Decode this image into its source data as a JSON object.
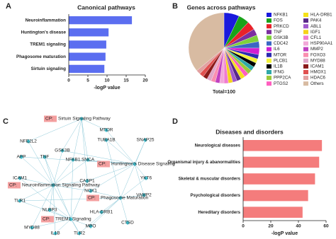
{
  "chart_data": [
    {
      "type": "hbar",
      "panel": "A",
      "title": "Canonical pathways",
      "categories": [
        "Neuroinflammation",
        "Huntington's disease",
        "TREM1 signaling",
        "Phagosome maturation",
        "Sirtuin signaling"
      ],
      "values": [
        16.5,
        10.4,
        9.8,
        9.6,
        9.3
      ],
      "color": "#5b6ef0",
      "xlabel": "-logP value",
      "xlim": [
        0,
        20
      ],
      "xticks": [
        0,
        5,
        10,
        15,
        20
      ]
    },
    {
      "type": "pie",
      "panel": "B",
      "title": "Genes across pathways",
      "total_label": "Total=100",
      "categories": [
        "NFKB1",
        "FOS",
        "PRKCD",
        "TNF",
        "GSK3B",
        "CDC42",
        "IL6",
        "MTOR",
        "PLCB1",
        "IL1B",
        "IFNG",
        "PPP2CA",
        "PTGS2",
        "HLA-DRB1",
        "PAK4",
        "ABL1",
        "IGF1",
        "CFL1",
        "HSP90AA1",
        "MMP2",
        "FOXO3",
        "MYD88",
        "ICAM1",
        "HMOX1",
        "HDAC6",
        "Others"
      ],
      "values": [
        7,
        5,
        4,
        3,
        3,
        3,
        3,
        2,
        2,
        2,
        2,
        2,
        2,
        2,
        2,
        2,
        2,
        2,
        2,
        2,
        2,
        2,
        2,
        2,
        2,
        36
      ],
      "colors": [
        "#1a1adc",
        "#19a319",
        "#e8222a",
        "#7b2fa0",
        "#7fd13b",
        "#3a66c4",
        "#d11fd1",
        "#2a2ab0",
        "#f2f23a",
        "#000000",
        "#2fa8a8",
        "#9cc93a",
        "#ff5ebf",
        "#f5e11a",
        "#5a2a8a",
        "#a15acd",
        "#f5d21a",
        "#f07bd0",
        "#f2a7d8",
        "#c040c0",
        "#fa8fb0",
        "#e0a7c9",
        "#8b1a1a",
        "#e05050",
        "#e2a0a0",
        "#d8bba2"
      ]
    },
    {
      "type": "hbar",
      "panel": "D",
      "title": "Diseases and disorders",
      "categories": [
        "Neurological diseases",
        "Organismal injury & abanormalities",
        "Skeletal & muscular disorders",
        "Psychological disorders",
        "Hereditary disorders"
      ],
      "values": [
        57,
        55,
        52,
        47,
        43
      ],
      "color": "#f47c7c",
      "xlabel": "-logP value",
      "xlim": [
        0,
        60
      ],
      "xticks": [
        0,
        20,
        40,
        60
      ]
    }
  ],
  "network": {
    "panel": "C",
    "nodes": [
      {
        "prefix": "CP:",
        "name": "Sirtuin Signaling Pathway"
      },
      {
        "name": "MTOR"
      },
      {
        "name": "NFE2L2"
      },
      {
        "name": "GSK3B"
      },
      {
        "name": "TUBA1B"
      },
      {
        "name": "SNAP25"
      },
      {
        "name": "APP"
      },
      {
        "name": "TNF"
      },
      {
        "name": "NFKB1"
      },
      {
        "name": "SNCA"
      },
      {
        "prefix": "CP:",
        "name": "Huntington's Disease Signaling"
      },
      {
        "name": "ICAM1"
      },
      {
        "name": "CASP1"
      },
      {
        "name": "YKT6"
      },
      {
        "prefix": "CP:",
        "name": "Neuroinflammation Signaling Pathway"
      },
      {
        "name": "NOX1"
      },
      {
        "name": "VAMP2"
      },
      {
        "prefix": "CP:",
        "name": "Phagosome Maturation"
      },
      {
        "name": "TLR1"
      },
      {
        "name": "NLRP3"
      },
      {
        "name": "HLA-DRB1"
      },
      {
        "prefix": "CP:",
        "name": "TREM1 Signaling"
      },
      {
        "name": "MYD88"
      },
      {
        "name": "MPO"
      },
      {
        "name": "CTSD"
      },
      {
        "name": "IL1B"
      },
      {
        "name": "TLR2"
      }
    ]
  }
}
